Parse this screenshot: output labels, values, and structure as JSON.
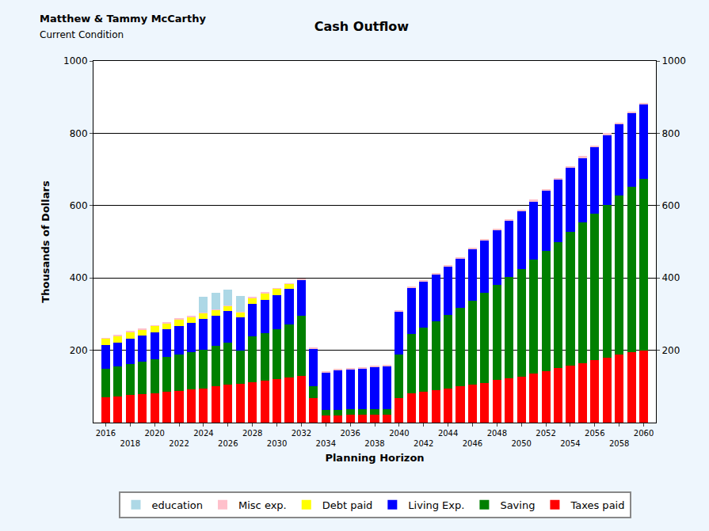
{
  "chart_data": {
    "type": "bar",
    "stacked": true,
    "title": "Cash Outflow",
    "annotations": [
      "Matthew & Tammy McCarthy",
      "Current Condition"
    ],
    "x_label": "Planning Horizon",
    "y_label": "Thousands of Dollars",
    "x": [
      2016,
      2017,
      2018,
      2019,
      2020,
      2021,
      2022,
      2023,
      2024,
      2025,
      2026,
      2027,
      2028,
      2029,
      2030,
      2031,
      2032,
      2033,
      2034,
      2035,
      2036,
      2037,
      2038,
      2039,
      2040,
      2041,
      2042,
      2043,
      2044,
      2045,
      2046,
      2047,
      2048,
      2049,
      2050,
      2051,
      2052,
      2053,
      2054,
      2055,
      2056,
      2057,
      2058,
      2059,
      2060
    ],
    "xlim": [
      2015,
      2061
    ],
    "xticks": [
      2016,
      2018,
      2020,
      2022,
      2024,
      2026,
      2028,
      2030,
      2032,
      2034,
      2036,
      2038,
      2040,
      2042,
      2044,
      2046,
      2048,
      2050,
      2052,
      2054,
      2056,
      2058,
      2060
    ],
    "ylim": [
      0,
      1000
    ],
    "yticks": [
      200,
      400,
      600,
      800,
      1000
    ],
    "y2lim": [
      0,
      1000
    ],
    "y2ticks": [
      200,
      400,
      600,
      800,
      1000
    ],
    "grid": true,
    "legend": "bottom",
    "series": [
      {
        "name": "Taxes paid",
        "color": "#ff0000",
        "values": [
          70,
          73,
          76,
          79,
          82,
          85,
          88,
          91,
          95,
          100,
          105,
          108,
          112,
          116,
          120,
          125,
          130,
          68,
          20,
          20,
          22,
          22,
          22,
          22,
          68,
          82,
          86,
          90,
          95,
          100,
          105,
          110,
          118,
          122,
          128,
          135,
          142,
          150,
          158,
          165,
          172,
          180,
          188,
          195,
          200
        ]
      },
      {
        "name": "Saving",
        "color": "#008000",
        "values": [
          78,
          82,
          86,
          89,
          93,
          97,
          100,
          104,
          107,
          112,
          117,
          92,
          126,
          132,
          138,
          147,
          165,
          32,
          15,
          15,
          15,
          15,
          16,
          16,
          120,
          163,
          176,
          190,
          203,
          218,
          233,
          248,
          262,
          280,
          297,
          315,
          333,
          350,
          369,
          388,
          406,
          422,
          440,
          457,
          475
        ]
      },
      {
        "name": "Living Exp.",
        "color": "#0000ff",
        "values": [
          67,
          67,
          70,
          72,
          75,
          76,
          80,
          81,
          85,
          84,
          86,
          90,
          90,
          92,
          94,
          98,
          100,
          105,
          105,
          110,
          111,
          113,
          117,
          119,
          120,
          127,
          128,
          130,
          135,
          137,
          142,
          147,
          152,
          156,
          160,
          162,
          167,
          172,
          178,
          180,
          184,
          193,
          197,
          203,
          205
        ]
      },
      {
        "name": "Debt paid",
        "color": "#ffff00",
        "values": [
          17,
          18,
          18,
          18,
          17,
          17,
          17,
          17,
          16,
          16,
          14,
          15,
          17,
          18,
          18,
          13,
          0,
          0,
          0,
          0,
          0,
          0,
          0,
          0,
          0,
          0,
          0,
          0,
          0,
          0,
          0,
          0,
          0,
          0,
          0,
          0,
          0,
          0,
          0,
          0,
          0,
          0,
          0,
          0,
          0
        ]
      },
      {
        "name": "Misc exp.",
        "color": "#ffc0cb",
        "values": [
          2,
          2,
          2,
          2,
          2,
          2,
          2,
          2,
          2,
          2,
          2,
          2,
          2,
          2,
          2,
          2,
          2,
          2,
          2,
          2,
          2,
          2,
          2,
          2,
          3,
          3,
          3,
          3,
          3,
          3,
          3,
          3,
          3,
          3,
          4,
          4,
          4,
          4,
          4,
          4,
          4,
          5,
          5,
          5,
          5
        ]
      },
      {
        "name": "education",
        "color": "#add8e6",
        "values": [
          0,
          0,
          0,
          0,
          0,
          0,
          0,
          0,
          43,
          44,
          43,
          43,
          0,
          0,
          0,
          0,
          0,
          0,
          0,
          0,
          0,
          0,
          0,
          0,
          0,
          0,
          0,
          0,
          0,
          0,
          0,
          0,
          0,
          0,
          0,
          0,
          0,
          0,
          0,
          0,
          0,
          0,
          0,
          0,
          0
        ]
      }
    ]
  }
}
